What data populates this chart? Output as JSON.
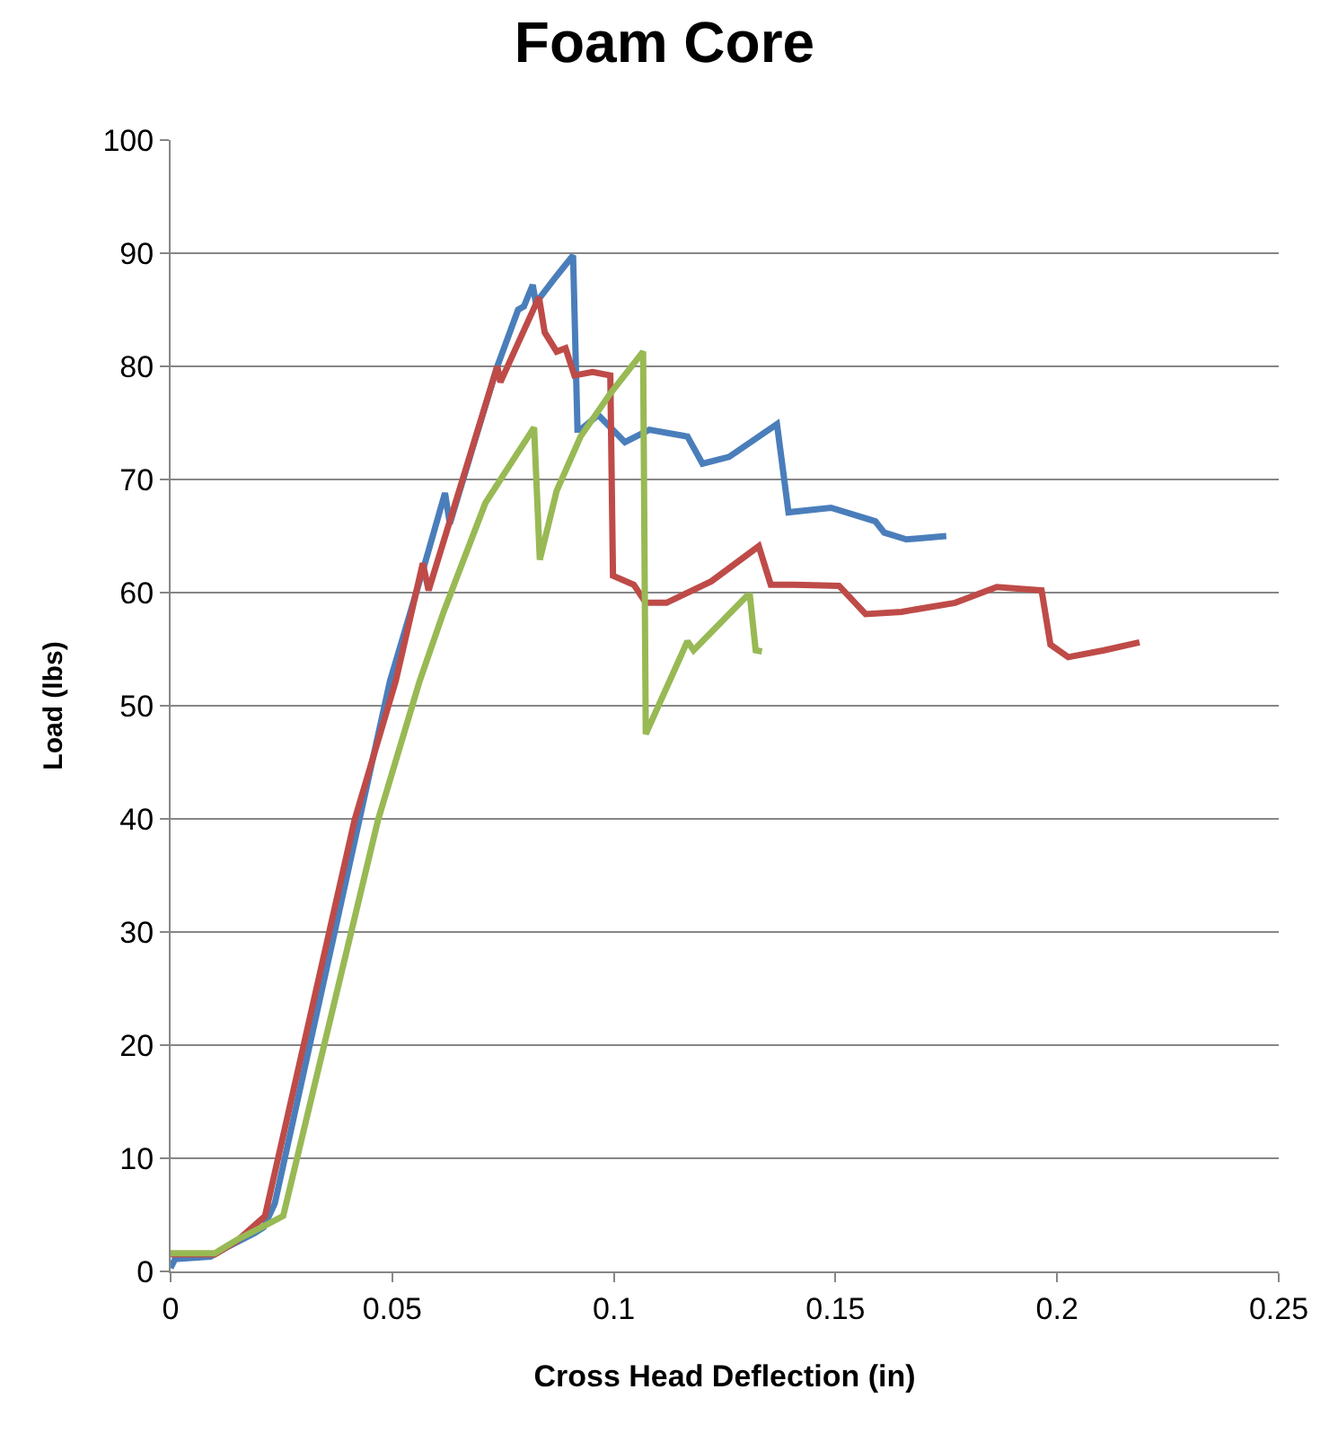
{
  "chart_data": {
    "type": "line",
    "title": "Foam Core",
    "xlabel": "Cross Head Deflection (in)",
    "ylabel": "Load (lbs)",
    "xlim": [
      0,
      0.25
    ],
    "xticks": [
      0,
      0.05,
      0.1,
      0.15,
      0.2,
      0.25
    ],
    "ylim": [
      0,
      100
    ],
    "yticks": [
      0,
      10,
      20,
      30,
      40,
      50,
      60,
      70,
      80,
      90,
      100
    ],
    "grid": "y",
    "marker": "none",
    "line_style": "solid",
    "series": [
      {
        "color": "#4a7ebb",
        "x": [
          0,
          0.001,
          0.009,
          0.013,
          0.019,
          0.021,
          0.0235,
          0.0495,
          0.0576,
          0.0619,
          0.063,
          0.0737,
          0.0784,
          0.0797,
          0.0817,
          0.0824,
          0.0871,
          0.0908,
          0.0918,
          0.0925,
          0.0965,
          0.1025,
          0.108,
          0.1166,
          0.12,
          0.126,
          0.1368,
          0.1394,
          0.149,
          0.159,
          0.161,
          0.166,
          0.175
        ],
        "values": [
          0.3,
          1.1,
          1.3,
          2.2,
          3.4,
          3.9,
          6,
          52.2,
          62.9,
          68.8,
          66.1,
          80,
          85,
          85.3,
          87.2,
          85.6,
          88,
          89.8,
          74.4,
          74.4,
          75.7,
          73.3,
          74.4,
          73.8,
          71.4,
          72,
          74.9,
          67.1,
          67.5,
          66.3,
          65.3,
          64.7,
          65
        ]
      },
      {
        "color": "#be4b48",
        "x": [
          0,
          0.01,
          0.015,
          0.0213,
          0.0415,
          0.0508,
          0.0569,
          0.0582,
          0.0737,
          0.0744,
          0.0831,
          0.0844,
          0.0871,
          0.0891,
          0.0911,
          0.0952,
          0.0992,
          0.0998,
          0.1045,
          0.1072,
          0.1119,
          0.122,
          0.1327,
          0.1354,
          0.1408,
          0.1508,
          0.1568,
          0.1649,
          0.177,
          0.1864,
          0.1965,
          0.1985,
          0.2025,
          0.2106,
          0.2186
        ],
        "values": [
          1.5,
          1.5,
          2.7,
          4.9,
          39.9,
          52.2,
          62.6,
          60.2,
          80,
          78.6,
          86.1,
          83,
          81.3,
          81.6,
          79.2,
          79.5,
          79.2,
          61.5,
          60.7,
          59.1,
          59.1,
          61,
          64.1,
          60.7,
          60.7,
          60.6,
          58.1,
          58.3,
          59.1,
          60.5,
          60.2,
          55.4,
          54.3,
          54.9,
          55.6
        ]
      },
      {
        "color": "#98b954",
        "x": [
          0,
          0.01,
          0.015,
          0.022,
          0.0254,
          0.0468,
          0.0562,
          0.0616,
          0.071,
          0.0764,
          0.082,
          0.0833,
          0.0871,
          0.0925,
          0.0992,
          0.1066,
          0.1072,
          0.1166,
          0.118,
          0.13,
          0.1307,
          0.132,
          0.1334
        ],
        "values": [
          1.6,
          1.6,
          2.8,
          4.2,
          4.9,
          39.9,
          52.2,
          58.3,
          67.9,
          71.2,
          74.6,
          62.9,
          69,
          73.8,
          77.6,
          81.3,
          47.5,
          55.7,
          54.9,
          59.7,
          59.7,
          54.9,
          54.8
        ]
      }
    ]
  }
}
